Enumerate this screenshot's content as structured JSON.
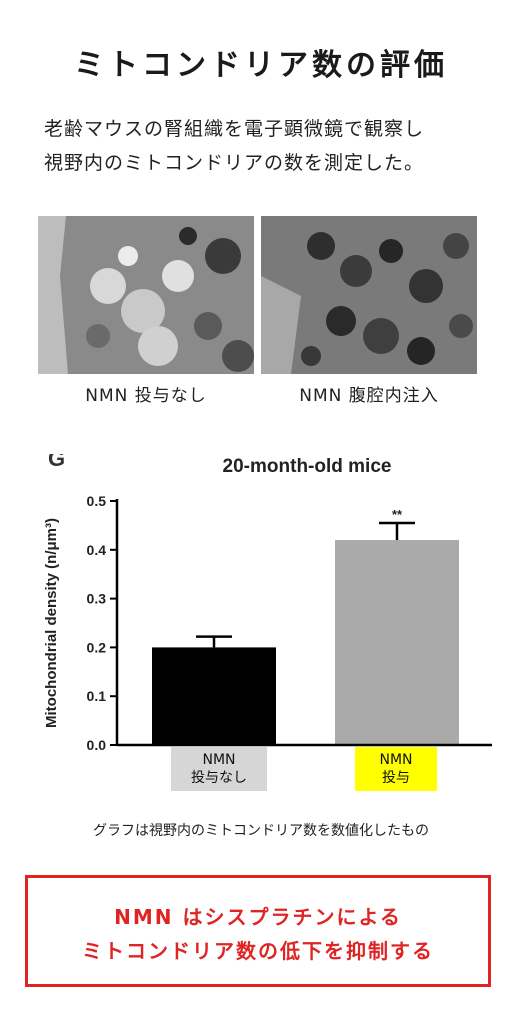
{
  "title": "ミトコンドリア数の評価",
  "description": {
    "line1": "老齢マウスの腎組織を電子顕微鏡で観察し",
    "line2": "視野内のミトコンドリアの数を測定した。"
  },
  "images": {
    "left_caption": "NMN 投与なし",
    "right_caption": "NMN 腹腔内注入"
  },
  "chart_data": {
    "type": "bar",
    "panel_letter": "G",
    "title": "20-month-old mice",
    "ylabel": "Mitochondrial density (n/μm³)",
    "ylim": [
      0,
      0.5
    ],
    "yticks": [
      "0.0",
      "0.1",
      "0.2",
      "0.3",
      "0.4",
      "0.5"
    ],
    "categories": [
      "NMN 投与なし",
      "NMN 投与"
    ],
    "values": [
      0.2,
      0.42
    ],
    "errors": [
      0.022,
      0.035
    ],
    "bar_colors": [
      "#000000",
      "#aaaaaa"
    ],
    "annotations": [
      "",
      "**"
    ],
    "grid": false
  },
  "xlabels": {
    "left_line1": "NMN",
    "left_line2": "投与なし",
    "right_line1": "NMN",
    "right_line2": "投与"
  },
  "note": "グラフは視野内のミトコンドリア数を数値化したもの",
  "conclusion": {
    "line1": "NMN はシスプラチンによる",
    "line2": "ミトコンドリア数の低下を抑制する"
  },
  "colors": {
    "accent_red": "#e02424",
    "highlight_yellow": "#ffff00",
    "label_gray": "#d6d6d6"
  }
}
